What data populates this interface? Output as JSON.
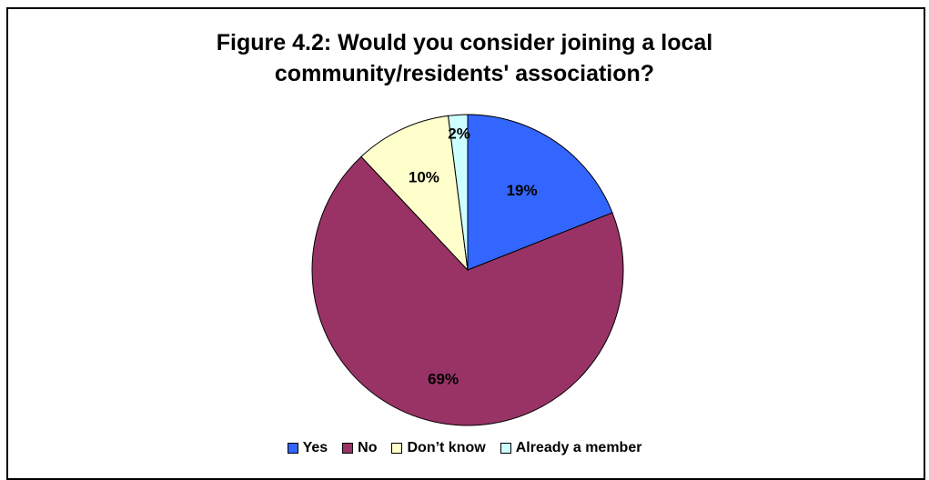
{
  "chart_data": {
    "type": "pie",
    "title_lines": [
      "Figure 4.2: Would you consider joining a local",
      "community/residents' association?"
    ],
    "categories": [
      "Yes",
      "No",
      "Don’t know",
      "Already a member"
    ],
    "values": [
      19,
      69,
      10,
      2
    ],
    "labels": [
      "19%",
      "69%",
      "10%",
      "2%"
    ],
    "colors": [
      "#3366ff",
      "#993366",
      "#ffffcc",
      "#ccffff"
    ],
    "legend_position": "bottom"
  }
}
